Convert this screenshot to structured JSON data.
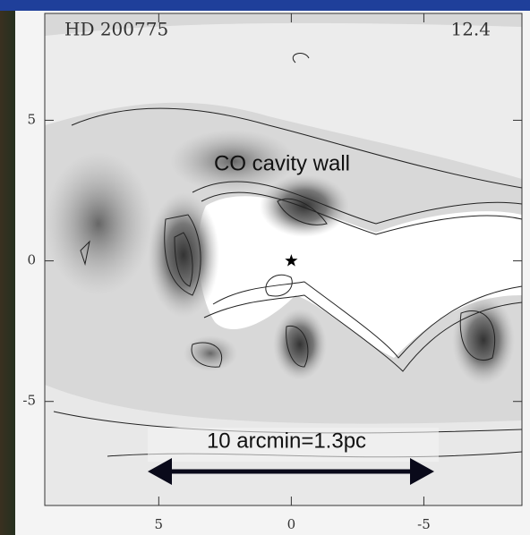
{
  "chart_data": {
    "type": "contour",
    "title": "HD 200775",
    "subtitle": "12.4",
    "annotations": [
      "CO cavity wall",
      "10 arcmin=1.3pc"
    ],
    "source": {
      "x": 0,
      "y": 0
    },
    "xlim": [
      9.3,
      -8.7
    ],
    "ylim": [
      -8.7,
      8.8
    ],
    "xticks": [
      5,
      0,
      -5
    ],
    "yticks": [
      5,
      0,
      -5
    ]
  }
}
